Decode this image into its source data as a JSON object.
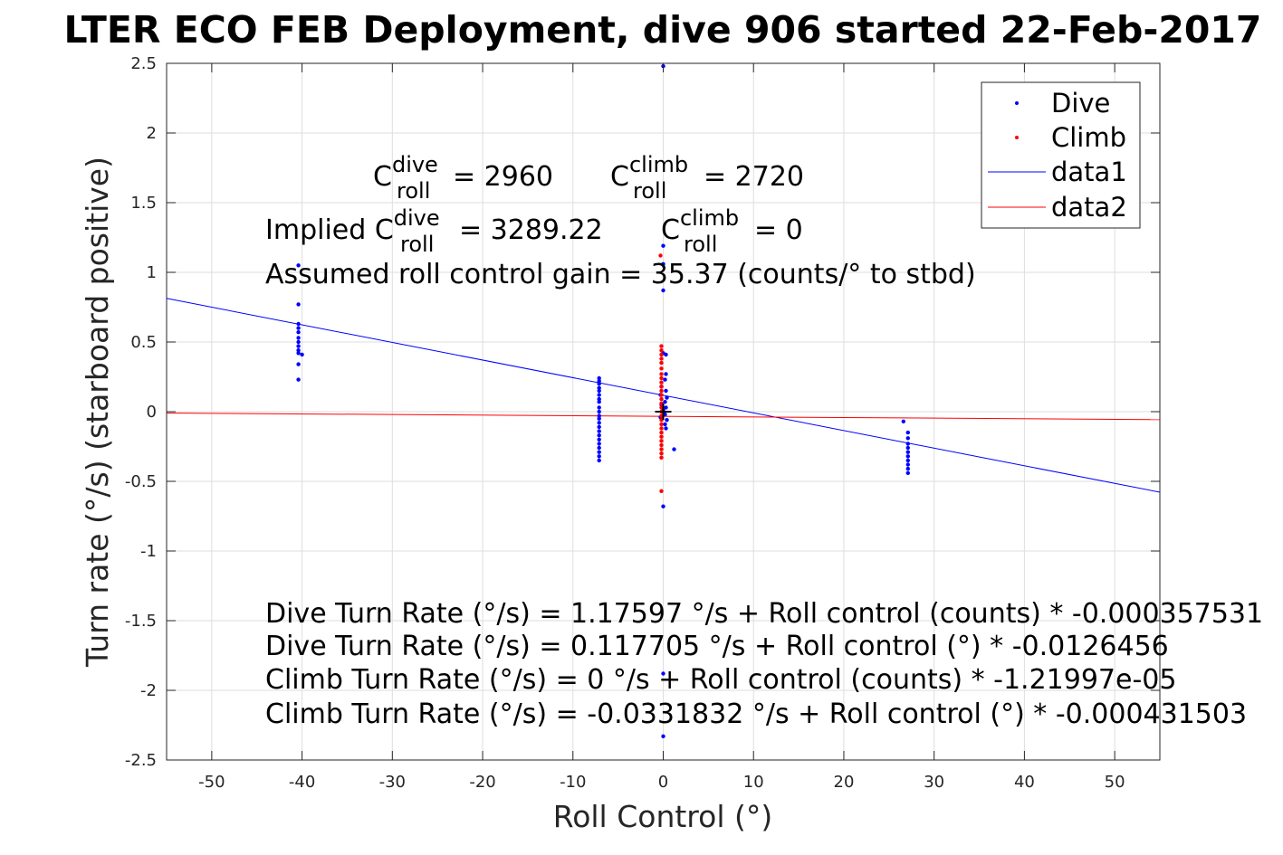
{
  "chart_data": {
    "type": "scatter",
    "title": "LTER ECO FEB Deployment, dive 906 started 22-Feb-2017",
    "xlabel": "Roll Control (°)",
    "ylabel": "Turn rate (°/s) (starboard positive)",
    "xlim": [
      -55,
      55
    ],
    "ylim": [
      -2.5,
      2.5
    ],
    "xticks": [
      -50,
      -40,
      -30,
      -20,
      -10,
      0,
      10,
      20,
      30,
      40,
      50
    ],
    "yticks": [
      2.5,
      2,
      1.5,
      1,
      0.5,
      0,
      -0.5,
      -1,
      -1.5,
      -2,
      -2.5
    ],
    "grid": true,
    "legend_position": "top-right",
    "series": [
      {
        "name": "Dive",
        "kind": "points",
        "color": "#0000ff",
        "points": [
          [
            -40.4,
            1.05
          ],
          [
            -40.4,
            0.77
          ],
          [
            -40.4,
            0.63
          ],
          [
            -40.4,
            0.6
          ],
          [
            -40.4,
            0.57
          ],
          [
            -40.4,
            0.53
          ],
          [
            -40.4,
            0.5
          ],
          [
            -40.4,
            0.47
          ],
          [
            -40.4,
            0.44
          ],
          [
            -40.4,
            0.42
          ],
          [
            -40.0,
            0.41
          ],
          [
            -40.4,
            0.34
          ],
          [
            -40.4,
            0.23
          ],
          [
            -7.1,
            0.24
          ],
          [
            -7.1,
            0.22
          ],
          [
            -7.1,
            0.2
          ],
          [
            -7.1,
            0.17
          ],
          [
            -7.1,
            0.15
          ],
          [
            -7.1,
            0.12
          ],
          [
            -7.1,
            0.09
          ],
          [
            -7.1,
            0.07
          ],
          [
            -7.1,
            0.03
          ],
          [
            -7.1,
            0.0
          ],
          [
            -7.1,
            -0.03
          ],
          [
            -7.1,
            -0.05
          ],
          [
            -7.1,
            -0.08
          ],
          [
            -7.1,
            -0.11
          ],
          [
            -7.1,
            -0.14
          ],
          [
            -7.1,
            -0.17
          ],
          [
            -7.1,
            -0.2
          ],
          [
            -7.1,
            -0.23
          ],
          [
            -7.1,
            -0.26
          ],
          [
            -7.1,
            -0.29
          ],
          [
            -7.1,
            -0.32
          ],
          [
            -7.1,
            -0.35
          ],
          [
            0.0,
            2.48
          ],
          [
            0.0,
            1.19
          ],
          [
            0.0,
            1.06
          ],
          [
            0.0,
            0.87
          ],
          [
            0.0,
            0.42
          ],
          [
            0.3,
            0.41
          ],
          [
            0.3,
            0.27
          ],
          [
            0.2,
            0.23
          ],
          [
            -0.2,
            0.18
          ],
          [
            0.3,
            0.15
          ],
          [
            -0.3,
            0.12
          ],
          [
            0.4,
            0.1
          ],
          [
            0.2,
            0.07
          ],
          [
            -0.2,
            0.05
          ],
          [
            0.3,
            0.03
          ],
          [
            0.0,
            0.01
          ],
          [
            0.2,
            -0.02
          ],
          [
            -0.3,
            -0.04
          ],
          [
            0.4,
            -0.06
          ],
          [
            0.2,
            -0.09
          ],
          [
            0.3,
            -0.12
          ],
          [
            1.2,
            -0.27
          ],
          [
            0.0,
            -0.68
          ],
          [
            0.0,
            -1.88
          ],
          [
            0.0,
            -2.33
          ],
          [
            26.6,
            -0.07
          ],
          [
            27.1,
            -0.15
          ],
          [
            27.1,
            -0.19
          ],
          [
            27.1,
            -0.23
          ],
          [
            27.1,
            -0.26
          ],
          [
            27.1,
            -0.29
          ],
          [
            27.1,
            -0.32
          ],
          [
            27.1,
            -0.35
          ],
          [
            27.1,
            -0.38
          ],
          [
            27.1,
            -0.41
          ],
          [
            27.1,
            -0.44
          ]
        ]
      },
      {
        "name": "Climb",
        "kind": "points",
        "color": "#ff0000",
        "points": [
          [
            -0.3,
            1.12
          ],
          [
            -0.2,
            0.47
          ],
          [
            -0.2,
            0.44
          ],
          [
            -0.2,
            0.41
          ],
          [
            -0.2,
            0.38
          ],
          [
            -0.2,
            0.35
          ],
          [
            -0.2,
            0.31
          ],
          [
            -0.2,
            0.27
          ],
          [
            -0.2,
            0.24
          ],
          [
            -0.2,
            0.21
          ],
          [
            -0.2,
            0.18
          ],
          [
            -0.2,
            0.15
          ],
          [
            -0.2,
            0.12
          ],
          [
            -0.2,
            0.09
          ],
          [
            -0.2,
            0.06
          ],
          [
            -0.2,
            0.03
          ],
          [
            -0.2,
            0.0
          ],
          [
            -0.2,
            -0.03
          ],
          [
            -0.2,
            -0.06
          ],
          [
            -0.2,
            -0.09
          ],
          [
            -0.2,
            -0.12
          ],
          [
            -0.2,
            -0.15
          ],
          [
            -0.2,
            -0.18
          ],
          [
            -0.2,
            -0.21
          ],
          [
            -0.2,
            -0.24
          ],
          [
            -0.2,
            -0.27
          ],
          [
            -0.2,
            -0.3
          ],
          [
            -0.2,
            -0.33
          ],
          [
            -0.2,
            -0.57
          ]
        ]
      },
      {
        "name": "data1",
        "kind": "line",
        "color": "#0000ff",
        "points": [
          [
            -55,
            0.813
          ],
          [
            55,
            -0.578
          ]
        ]
      },
      {
        "name": "data2",
        "kind": "line",
        "color": "#ff0000",
        "points": [
          [
            -55,
            -0.0095
          ],
          [
            55,
            -0.0569
          ]
        ]
      }
    ],
    "origin_marker": [
      0,
      0
    ],
    "annotations": {
      "c_roll_dive_prefix": "C",
      "c_roll_dive_sup": "dive",
      "c_roll_dive_sub": "roll",
      "c_roll_dive_value": "= 2960",
      "c_roll_climb_prefix": "C",
      "c_roll_climb_sup": "climb",
      "c_roll_climb_sub": "roll",
      "c_roll_climb_value": "= 2720",
      "implied_prefix": "Implied C",
      "implied_dive_sup": "dive",
      "implied_dive_sub": "roll",
      "implied_dive_value": "= 3289.22",
      "implied_climb_prefix": "C",
      "implied_climb_sup": "climb",
      "implied_climb_sub": "roll",
      "implied_climb_value": "= 0",
      "gain": "Assumed roll control gain = 35.37 (counts/° to stbd)",
      "fit1": "Dive Turn Rate (°/s) = 1.17597 °/s + Roll control (counts) * -0.000357531",
      "fit2": "Dive Turn Rate (°/s) = 0.117705 °/s + Roll control (°) * -0.0126456",
      "fit3": "Climb Turn Rate (°/s) = 0 °/s + Roll control (counts) * -1.21997e-05",
      "fit4": "Climb Turn Rate (°/s) = -0.0331832 °/s + Roll control (°) * -0.000431503"
    }
  }
}
